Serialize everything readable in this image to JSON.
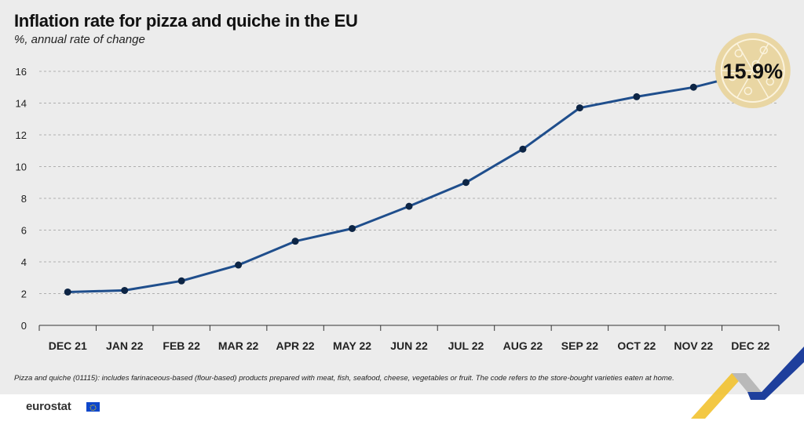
{
  "title": "Inflation rate for pizza and quiche in the EU",
  "subtitle": "%, annual rate of change",
  "footnote": "Pizza and quiche (01115): includes farinaceous-based (flour-based) products prepared with meat, fish, seafood, cheese, vegetables or fruit. The code refers to the store-bought varieties eaten at home.",
  "brand": "eurostat",
  "colors": {
    "line": "#1f4e8c",
    "marker": "#0d2545",
    "grid": "#9a9a9a",
    "badge": "#e9d6a3",
    "badge_detail": "#fbf3dd",
    "background": "#ececec"
  },
  "chart_data": {
    "type": "line",
    "categories": [
      "DEC 21",
      "JAN 22",
      "FEB 22",
      "MAR 22",
      "APR 22",
      "MAY 22",
      "JUN 22",
      "JUL 22",
      "AUG 22",
      "SEP 22",
      "OCT 22",
      "NOV 22",
      "DEC 22"
    ],
    "series": [
      {
        "values": [
          2.1,
          2.2,
          2.8,
          3.8,
          5.3,
          6.1,
          7.5,
          9.0,
          11.1,
          13.7,
          14.4,
          15.0,
          15.9
        ]
      }
    ],
    "ylim": [
      0,
      16
    ],
    "yticks": [
      0,
      2,
      4,
      6,
      8,
      10,
      12,
      14,
      16
    ],
    "grid": true,
    "annotation": {
      "category": "DEC 22",
      "text": "15.9%",
      "icon": "pizza-icon"
    }
  }
}
